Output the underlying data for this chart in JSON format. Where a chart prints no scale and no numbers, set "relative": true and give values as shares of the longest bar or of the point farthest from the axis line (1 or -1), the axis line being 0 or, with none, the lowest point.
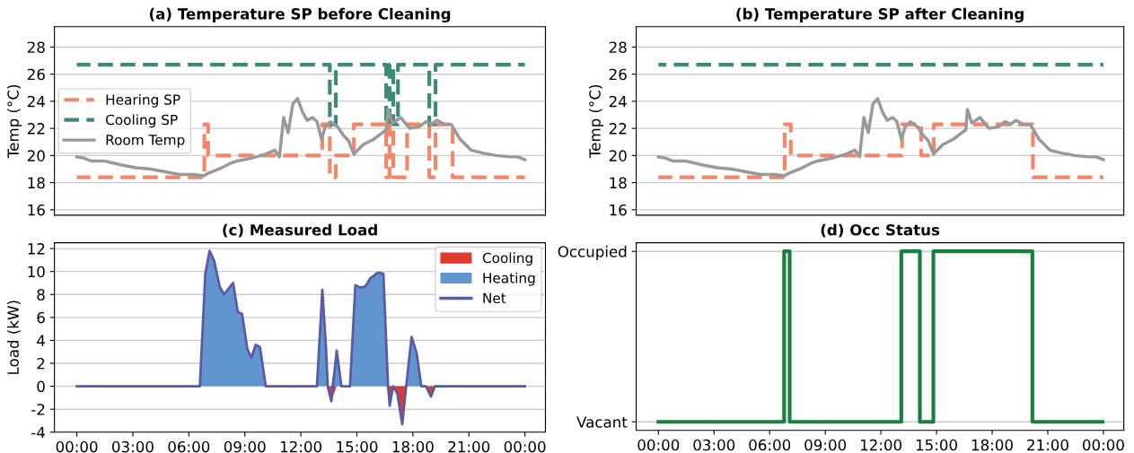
{
  "chart_data": [
    {
      "type": "line",
      "title": "(a) Temperature SP before Cleaning",
      "ylabel": "Temp (°C)",
      "xlim": [
        -1.2,
        25.1
      ],
      "ylim": [
        15.6,
        29.5
      ],
      "yticks": [
        16,
        18,
        20,
        22,
        24,
        26,
        28
      ],
      "tick_labels": "y",
      "grid": "y",
      "legend": "center left",
      "marker": "none",
      "series": [
        {
          "name": "Hearing SP",
          "type": "step",
          "line_style": "dashed",
          "color": "#f4876a",
          "x": [
            0,
            6.83,
            7.03,
            13.14,
            13.55,
            13.87,
            14.84,
            16.57,
            16.75,
            16.95,
            17.69,
            18.88,
            19.21,
            20.13,
            24
          ],
          "values": [
            18.4,
            22.3,
            20.0,
            22.3,
            18.4,
            20.0,
            22.3,
            18.4,
            22.3,
            18.4,
            22.3,
            18.4,
            22.3,
            18.4,
            18.4
          ]
        },
        {
          "name": "Cooling SP",
          "type": "step",
          "line_style": "dashed",
          "color": "#3d8a77",
          "x": [
            0,
            13.55,
            13.87,
            16.57,
            16.75,
            16.95,
            17.2,
            18.88,
            19.21,
            24
          ],
          "values": [
            26.7,
            22.3,
            26.7,
            22.3,
            26.7,
            22.3,
            26.7,
            22.3,
            26.7,
            26.7
          ]
        },
        {
          "name": "Room Temp",
          "type": "line",
          "line_style": "solid",
          "color": "#999999",
          "x": [
            0,
            0.39,
            0.77,
            1.45,
            2.41,
            3.18,
            3.95,
            4.72,
            5.49,
            6.27,
            6.8,
            7.04,
            7.61,
            8.19,
            8.58,
            9.35,
            10.12,
            10.6,
            10.85,
            11.08,
            11.32,
            11.57,
            11.82,
            12.09,
            12.34,
            12.63,
            12.86,
            13.11,
            13.3,
            13.59,
            13.98,
            14.27,
            14.55,
            14.84,
            15.33,
            15.9,
            16.39,
            16.58,
            16.67,
            16.9,
            17.35,
            17.83,
            18.31,
            18.7,
            18.99,
            19.28,
            19.66,
            20.05,
            20.53,
            21.11,
            21.69,
            22.46,
            23.23,
            23.61,
            24.0
          ],
          "values": [
            19.9,
            19.8,
            19.6,
            19.6,
            19.3,
            19.1,
            19.0,
            18.8,
            18.6,
            18.6,
            18.5,
            18.7,
            19.0,
            19.4,
            19.6,
            19.8,
            20.1,
            20.4,
            19.9,
            22.8,
            21.7,
            23.8,
            24.2,
            23.2,
            22.6,
            22.8,
            22.5,
            21.2,
            22.1,
            22.5,
            22.1,
            21.5,
            21.1,
            20.1,
            20.8,
            21.2,
            21.7,
            21.9,
            23.4,
            22.4,
            22.8,
            22.0,
            22.1,
            22.5,
            22.3,
            22.6,
            22.3,
            22.3,
            21.2,
            20.4,
            20.2,
            20.0,
            19.9,
            19.9,
            19.7
          ]
        }
      ]
    },
    {
      "type": "line",
      "title": "(b) Temperature SP after Cleaning",
      "ylabel": "Temp (°C)",
      "xlim": [
        -1.2,
        25.1
      ],
      "ylim": [
        15.6,
        29.5
      ],
      "yticks": [
        16,
        18,
        20,
        22,
        24,
        26,
        28
      ],
      "tick_labels": "y",
      "grid": "y",
      "marker": "none",
      "series": [
        {
          "type": "step",
          "line_style": "dashed",
          "color": "#f4876a",
          "x": [
            0,
            6.81,
            7.14,
            13.14,
            14.17,
            14.85,
            20.2,
            24
          ],
          "values": [
            18.4,
            22.3,
            20.0,
            22.3,
            20.0,
            22.3,
            18.4,
            18.4
          ]
        },
        {
          "type": "step",
          "line_style": "dashed",
          "color": "#3d8a77",
          "x": [
            0,
            24
          ],
          "values": [
            26.7,
            26.7
          ]
        },
        {
          "type": "line",
          "line_style": "solid",
          "color": "#999999",
          "x": [
            0,
            0.39,
            0.77,
            1.45,
            2.41,
            3.18,
            3.95,
            4.72,
            5.49,
            6.27,
            6.8,
            7.04,
            7.61,
            8.19,
            8.58,
            9.35,
            10.12,
            10.6,
            10.85,
            11.08,
            11.32,
            11.57,
            11.82,
            12.09,
            12.34,
            12.63,
            12.86,
            13.11,
            13.3,
            13.59,
            13.98,
            14.27,
            14.55,
            14.84,
            15.33,
            15.9,
            16.39,
            16.58,
            16.67,
            16.9,
            17.35,
            17.83,
            18.31,
            18.7,
            18.99,
            19.28,
            19.66,
            20.05,
            20.53,
            21.11,
            21.69,
            22.46,
            23.23,
            23.61,
            24.0
          ],
          "values": [
            19.9,
            19.8,
            19.6,
            19.6,
            19.3,
            19.1,
            19.0,
            18.8,
            18.6,
            18.6,
            18.5,
            18.7,
            19.0,
            19.4,
            19.6,
            19.8,
            20.1,
            20.4,
            19.9,
            22.8,
            21.7,
            23.8,
            24.2,
            23.2,
            22.6,
            22.8,
            22.5,
            21.2,
            22.1,
            22.5,
            22.1,
            21.5,
            21.1,
            20.1,
            20.8,
            21.2,
            21.7,
            21.9,
            23.4,
            22.4,
            22.8,
            22.0,
            22.1,
            22.5,
            22.3,
            22.6,
            22.3,
            22.3,
            21.2,
            20.4,
            20.2,
            20.0,
            19.9,
            19.9,
            19.7
          ]
        }
      ]
    },
    {
      "type": "line",
      "title": "(c) Measured Load",
      "ylabel": "Load (kW)",
      "xlim": [
        -1.2,
        25.1
      ],
      "ylim": [
        -4,
        12.5
      ],
      "yticks": [
        -4,
        -2,
        0,
        2,
        4,
        6,
        8,
        10,
        12
      ],
      "xticks": [
        {
          "value": 0,
          "label": "00:00"
        },
        {
          "value": 3,
          "label": "03:00"
        },
        {
          "value": 6,
          "label": "06:00"
        },
        {
          "value": 9,
          "label": "09:00"
        },
        {
          "value": 12,
          "label": "12:00"
        },
        {
          "value": 15,
          "label": "15:00"
        },
        {
          "value": 18,
          "label": "18:00"
        },
        {
          "value": 21,
          "label": "21:00"
        },
        {
          "value": 24,
          "label": "00:00"
        }
      ],
      "grid": "y",
      "legend": "top right",
      "marker": "none",
      "x": [
        0,
        6.59,
        6.88,
        7.11,
        7.36,
        7.65,
        7.88,
        8.37,
        8.62,
        8.85,
        9.14,
        9.35,
        9.58,
        9.81,
        10.12,
        12.86,
        13.15,
        13.34,
        13.44,
        13.63,
        13.92,
        14.17,
        14.63,
        14.92,
        15.17,
        15.46,
        15.71,
        16.13,
        16.42,
        16.67,
        16.76,
        16.94,
        17.16,
        17.43,
        17.64,
        17.93,
        18.2,
        18.45,
        18.7,
        18.97,
        19.18,
        24
      ],
      "series": [
        {
          "name": "Cooling",
          "type": "area",
          "color": "#e03a2a",
          "values": [
            0,
            0,
            0,
            0,
            0,
            0,
            0,
            0,
            0,
            0,
            0,
            0,
            0,
            0,
            0,
            0,
            0,
            0,
            0,
            -1.3,
            0,
            0,
            0,
            0,
            0,
            0,
            0,
            0,
            0,
            0,
            -1.7,
            0,
            -0.6,
            -3.3,
            0,
            0,
            0,
            0,
            0,
            -0.9,
            0,
            0
          ]
        },
        {
          "name": "Heating",
          "type": "area",
          "color": "#6096cd",
          "values": [
            0,
            0,
            9.8,
            11.8,
            10.9,
            8.7,
            8.0,
            9.0,
            6.5,
            6.3,
            3.2,
            2.5,
            3.6,
            3.4,
            0,
            0,
            8.4,
            3.5,
            0,
            0,
            3.1,
            0,
            0,
            8.8,
            8.6,
            8.7,
            9.4,
            9.9,
            9.8,
            0,
            0,
            0,
            0,
            0,
            0,
            4.3,
            2.9,
            0,
            0,
            0,
            0,
            0
          ]
        },
        {
          "name": "Net",
          "type": "line",
          "line_style": "solid",
          "color": "#5a5aa8",
          "values": [
            0,
            0,
            9.8,
            11.8,
            10.9,
            8.7,
            8.0,
            9.0,
            6.5,
            6.3,
            3.2,
            2.5,
            3.6,
            3.4,
            0,
            0,
            8.4,
            3.5,
            0,
            -1.3,
            3.1,
            0,
            0,
            8.8,
            8.6,
            8.7,
            9.4,
            9.9,
            9.8,
            0,
            -1.7,
            0,
            -0.6,
            -3.3,
            0,
            4.3,
            2.9,
            0,
            0,
            -0.9,
            0,
            0
          ]
        }
      ]
    },
    {
      "type": "step",
      "title": "(d) Occ Status",
      "xlim": [
        -1.2,
        25.1
      ],
      "relative": true,
      "y_categories": [
        "Occupied",
        "Vacant"
      ],
      "xticks": [
        {
          "value": 0,
          "label": "00:00"
        },
        {
          "value": 3,
          "label": "03:00"
        },
        {
          "value": 6,
          "label": "06:00"
        },
        {
          "value": 9,
          "label": "09:00"
        },
        {
          "value": 12,
          "label": "12:00"
        },
        {
          "value": 15,
          "label": "15:00"
        },
        {
          "value": 18,
          "label": "18:00"
        },
        {
          "value": 21,
          "label": "21:00"
        },
        {
          "value": 24,
          "label": "00:00"
        }
      ],
      "grid": "y",
      "marker": "none",
      "line_style": "solid",
      "color": "#17803d",
      "x": [
        0,
        6.78,
        7.08,
        13.1,
        14.1,
        14.83,
        20.17,
        23.95
      ],
      "values": [
        0,
        1,
        0,
        1,
        0,
        1,
        0,
        0
      ]
    }
  ]
}
